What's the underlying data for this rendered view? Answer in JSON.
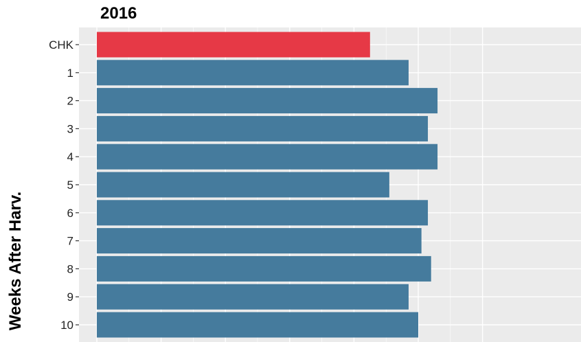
{
  "chart_data": {
    "type": "bar",
    "orientation": "horizontal",
    "title": "2016",
    "xlabel": "",
    "ylabel": "Weeks After Harv.",
    "categories": [
      "CHK",
      "1",
      "2",
      "3",
      "4",
      "5",
      "6",
      "7",
      "8",
      "9",
      "10"
    ],
    "values": [
      85,
      97,
      106,
      103,
      106,
      91,
      103,
      101,
      104,
      97,
      100
    ],
    "xlim": [
      0,
      120
    ],
    "grid": true,
    "colors": {
      "highlight": "#E63946",
      "bar": "#457B9D",
      "panel": "#EBEBEB",
      "grid": "#FFFFFF"
    },
    "highlight_category": "CHK"
  }
}
